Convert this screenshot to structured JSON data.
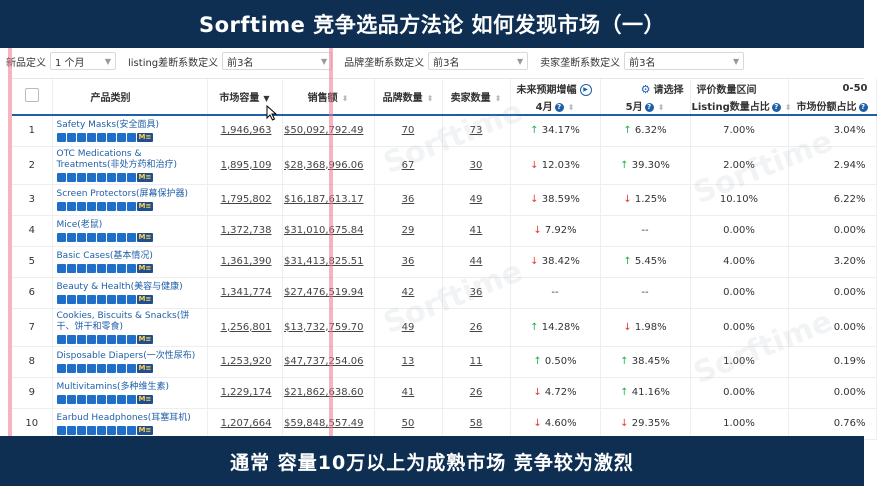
{
  "banner": {
    "title": "Sorftime 竞争选品方法论  如何发现市场（一）",
    "subtitle": "通常  容量10万以上为成熟市场  竞争较为激烈"
  },
  "filters": [
    {
      "label": "新品定义",
      "value": "1 个月"
    },
    {
      "label": "listing差断系数定义",
      "value": "前3名"
    },
    {
      "label": "品牌垄断系数定义",
      "value": "前3名"
    },
    {
      "label": "卖家垄断系数定义",
      "value": "前3名"
    }
  ],
  "table": {
    "headers": {
      "category": "产品类别",
      "market_capacity": "市场容量",
      "sales": "销售额",
      "brand_count": "品牌数量",
      "seller_count": "卖家数量",
      "future_growth": "未来预期增幅",
      "select": "请选择",
      "april": "4月",
      "may": "5月",
      "rating_range": "评价数量区间",
      "rating_value": "0-50",
      "listing_share": "Listing数量占比",
      "market_share": "市场份额占比"
    },
    "rows": [
      {
        "index": "1",
        "category": "Safety Masks(安全面具)",
        "capacity": "1,946,963",
        "sales": "$50,092,792.49",
        "brands": "70",
        "sellers": "73",
        "april": "34.17%",
        "april_dir": "up",
        "may": "6.32%",
        "may_dir": "up",
        "listing_share": "7.00%",
        "market_share": "3.04%"
      },
      {
        "index": "2",
        "category": "OTC Medications & Treatments(非处方药和治疗)",
        "capacity": "1,895,109",
        "sales": "$28,368,996.06",
        "brands": "67",
        "sellers": "30",
        "april": "12.03%",
        "april_dir": "down",
        "may": "39.30%",
        "may_dir": "up",
        "listing_share": "2.00%",
        "market_share": "2.94%"
      },
      {
        "index": "3",
        "category": "Screen Protectors(屏幕保护器)",
        "capacity": "1,795,802",
        "sales": "$16,187,613.17",
        "brands": "36",
        "sellers": "49",
        "april": "38.59%",
        "april_dir": "down",
        "may": "1.25%",
        "may_dir": "down",
        "listing_share": "10.10%",
        "market_share": "6.22%"
      },
      {
        "index": "4",
        "category": "Mice(老鼠)",
        "capacity": "1,372,738",
        "sales": "$31,010,675.84",
        "brands": "29",
        "sellers": "41",
        "april": "7.92%",
        "april_dir": "down",
        "may": "--",
        "may_dir": "none",
        "listing_share": "0.00%",
        "market_share": "0.00%"
      },
      {
        "index": "5",
        "category": "Basic Cases(基本情况)",
        "capacity": "1,361,390",
        "sales": "$31,413,825.51",
        "brands": "36",
        "sellers": "44",
        "april": "38.42%",
        "april_dir": "down",
        "may": "5.45%",
        "may_dir": "up",
        "listing_share": "4.00%",
        "market_share": "3.20%"
      },
      {
        "index": "6",
        "category": "Beauty & Health(美容与健康)",
        "capacity": "1,341,774",
        "sales": "$27,476,519.94",
        "brands": "42",
        "sellers": "36",
        "april": "--",
        "april_dir": "none",
        "may": "--",
        "may_dir": "none",
        "listing_share": "0.00%",
        "market_share": "0.00%"
      },
      {
        "index": "7",
        "category": "Cookies, Biscuits & Snacks(饼干、饼干和零食)",
        "capacity": "1,256,801",
        "sales": "$13,732,759.70",
        "brands": "49",
        "sellers": "26",
        "april": "14.28%",
        "april_dir": "up",
        "may": "1.98%",
        "may_dir": "down",
        "listing_share": "0.00%",
        "market_share": "0.00%"
      },
      {
        "index": "8",
        "category": "Disposable Diapers(一次性尿布)",
        "capacity": "1,253,920",
        "sales": "$47,737,254.06",
        "brands": "13",
        "sellers": "11",
        "april": "0.50%",
        "april_dir": "up",
        "may": "38.45%",
        "may_dir": "up",
        "listing_share": "1.00%",
        "market_share": "0.19%"
      },
      {
        "index": "9",
        "category": "Multivitamins(多种维生素)",
        "capacity": "1,229,174",
        "sales": "$21,862,638.60",
        "brands": "41",
        "sellers": "26",
        "april": "4.72%",
        "april_dir": "down",
        "may": "41.16%",
        "may_dir": "up",
        "listing_share": "0.00%",
        "market_share": "0.00%"
      },
      {
        "index": "10",
        "category": "Earbud Headphones(耳塞耳机)",
        "capacity": "1,207,664",
        "sales": "$59,848,557.49",
        "brands": "50",
        "sellers": "58",
        "april": "4.60%",
        "april_dir": "down",
        "may": "29.35%",
        "may_dir": "down",
        "listing_share": "1.00%",
        "market_share": "0.76%"
      }
    ]
  },
  "watermark_text": "Sorftime"
}
